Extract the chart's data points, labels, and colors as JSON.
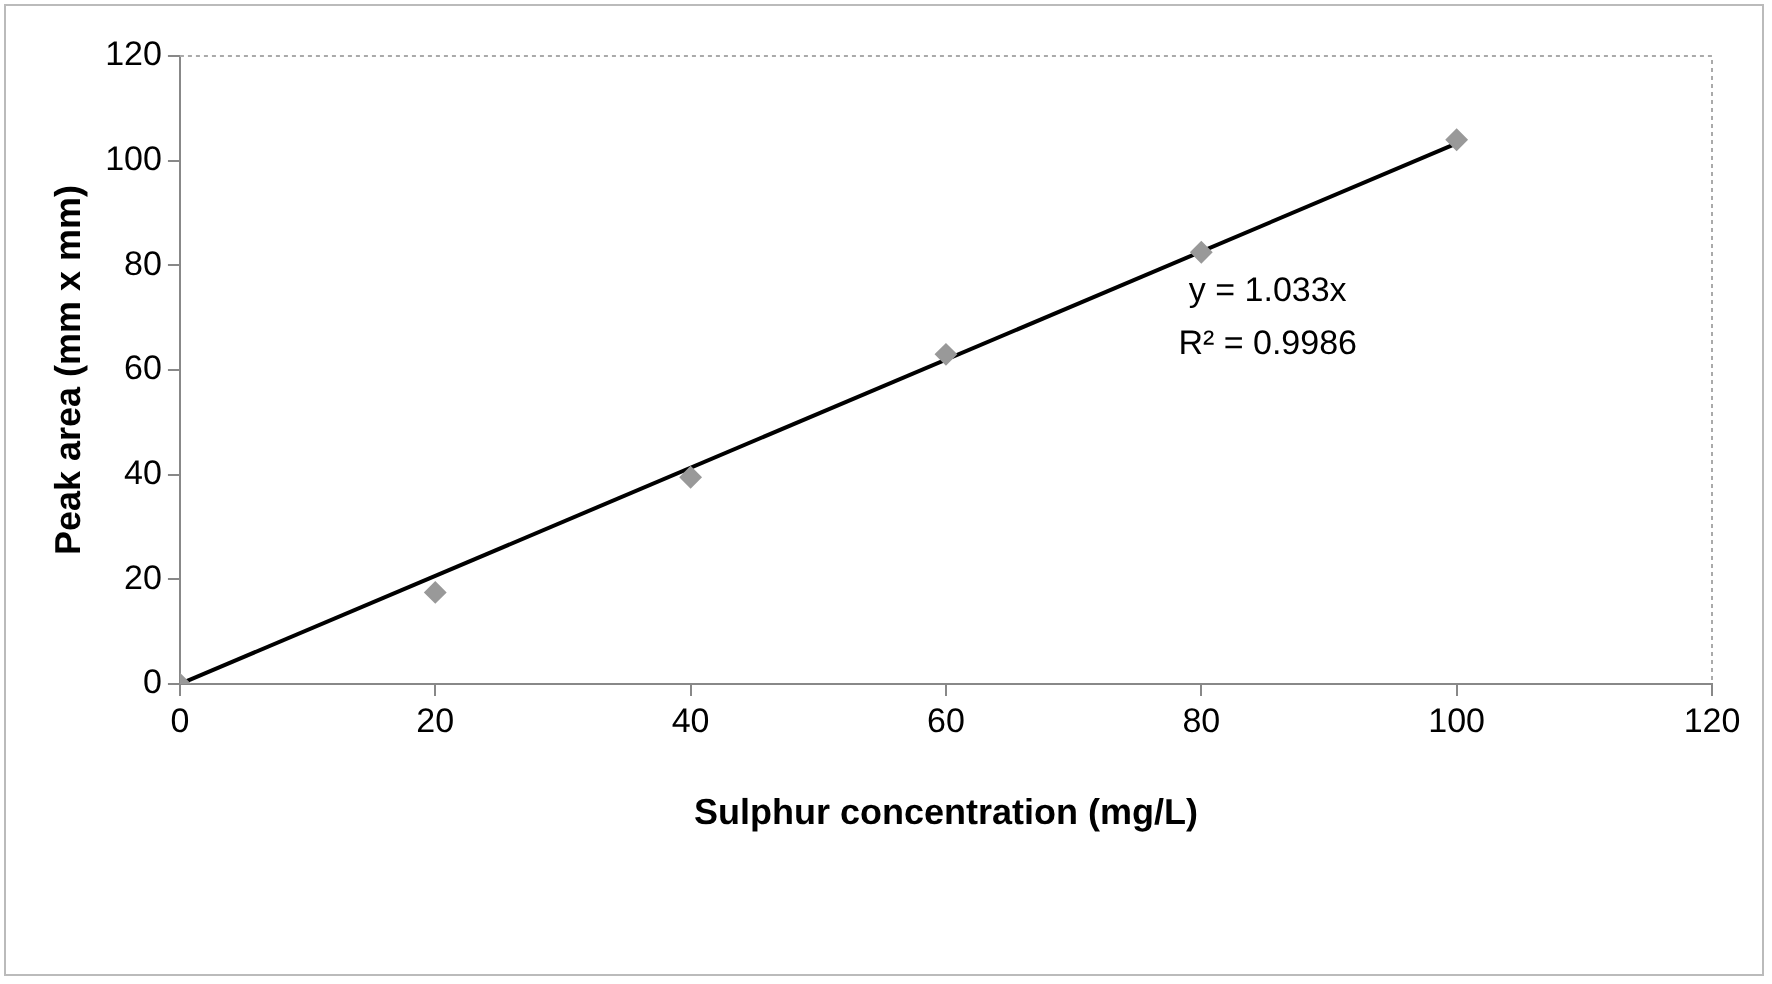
{
  "chart_data": {
    "type": "scatter",
    "xlabel": "Sulphur concentration (mg/L)",
    "ylabel": "Peak area (mm x mm)",
    "x": [
      0,
      20,
      40,
      60,
      80,
      100
    ],
    "series": [
      {
        "color": "#999999",
        "values": [
          0,
          17.5,
          39.5,
          63,
          82.5,
          104
        ],
        "marker": "diamond"
      },
      {
        "type": "line",
        "color": "#000000",
        "x": [
          0,
          100
        ],
        "values": [
          0,
          103.3
        ],
        "marker": "none"
      }
    ],
    "xlim": [
      0,
      120
    ],
    "xticks": [
      0,
      20,
      40,
      60,
      80,
      100,
      120
    ],
    "ylim": [
      0,
      120
    ],
    "yticks": [
      0,
      20,
      40,
      60,
      80,
      100,
      120
    ],
    "annotations": [
      "y = 1.033x",
      "R² = 0.9986"
    ],
    "grid": false,
    "legend": false
  }
}
